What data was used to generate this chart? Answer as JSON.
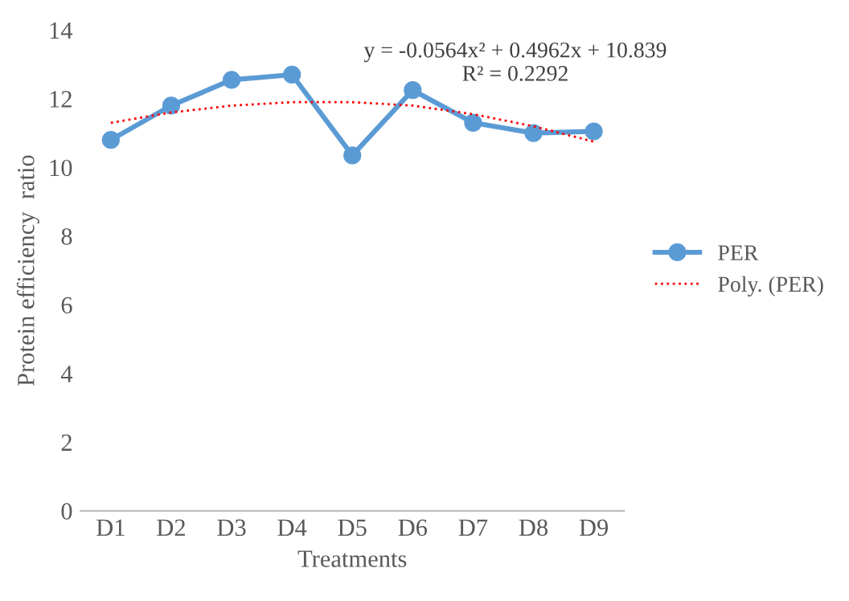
{
  "chart_data": {
    "type": "line",
    "xlabel": "Treatments",
    "ylabel": "Protein efficiency  ratio",
    "categories": [
      "D1",
      "D2",
      "D3",
      "D4",
      "D5",
      "D6",
      "D7",
      "D8",
      "D9"
    ],
    "series": [
      {
        "name": "PER",
        "color": "#5b9bd5",
        "marker": "circle",
        "line_style": "solid",
        "values": [
          10.8,
          11.8,
          12.55,
          12.7,
          10.35,
          12.25,
          11.3,
          11.0,
          11.05
        ]
      },
      {
        "name": "Poly. (PER)",
        "color": "#ff0000",
        "marker": "none",
        "line_style": "dotted",
        "values": [
          11.3,
          11.6,
          11.8,
          11.9,
          11.9,
          11.8,
          11.55,
          11.2,
          10.75
        ]
      }
    ],
    "ylim": [
      0,
      14
    ],
    "yticks": [
      0,
      2,
      4,
      6,
      8,
      10,
      12,
      14
    ],
    "grid": false,
    "legend": "right",
    "annotations": [
      "y = -0.0564x² + 0.4962x + 10.839\nR² = 0.2292"
    ]
  }
}
